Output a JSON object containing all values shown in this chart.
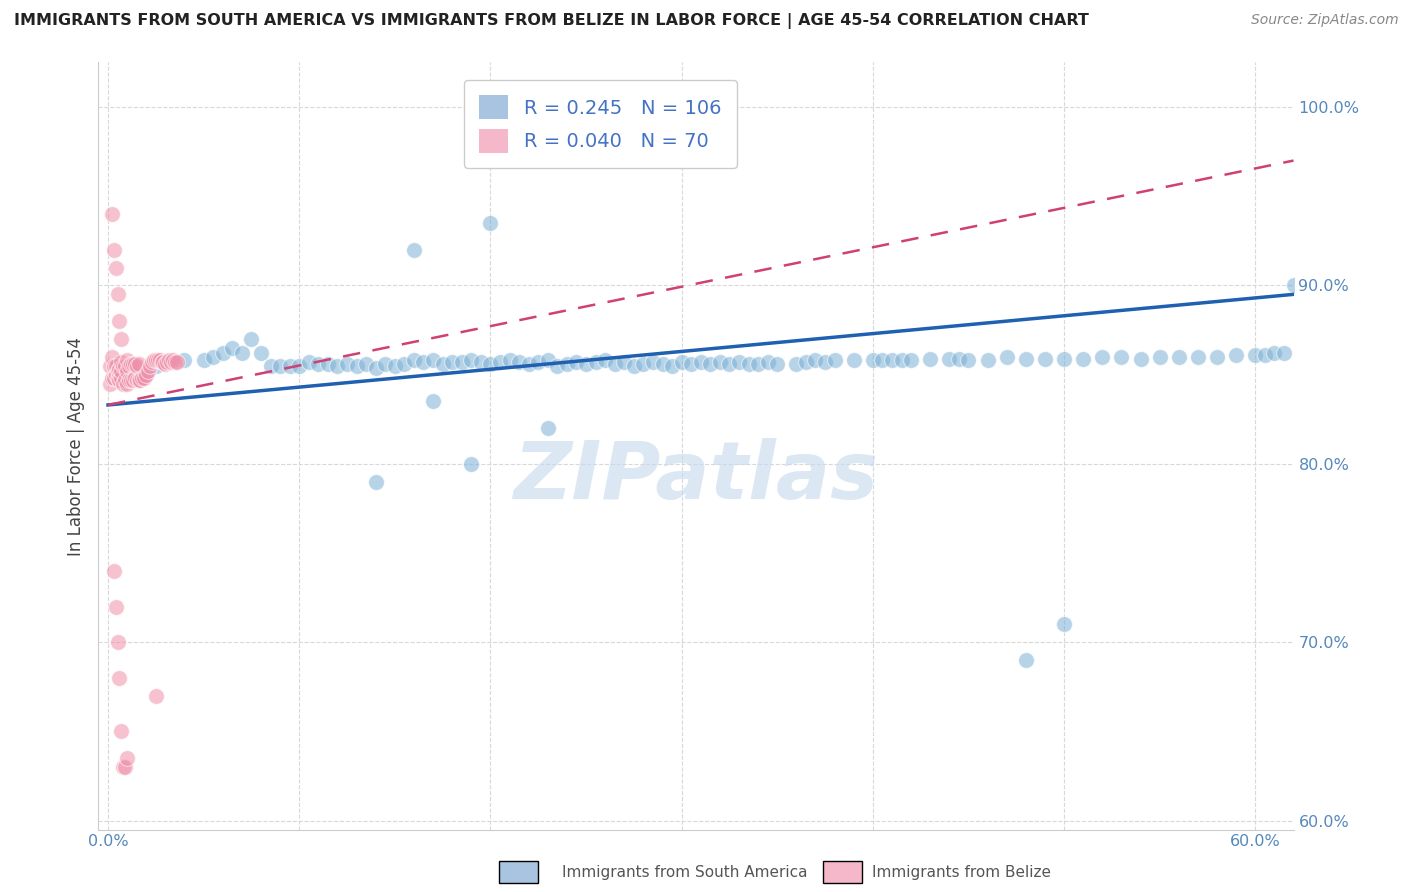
{
  "title": "IMMIGRANTS FROM SOUTH AMERICA VS IMMIGRANTS FROM BELIZE IN LABOR FORCE | AGE 45-54 CORRELATION CHART",
  "source": "Source: ZipAtlas.com",
  "ylabel": "In Labor Force | Age 45-54",
  "xlim": [
    -0.005,
    0.62
  ],
  "ylim": [
    0.595,
    1.025
  ],
  "xtick_positions": [
    0.0,
    0.1,
    0.2,
    0.3,
    0.4,
    0.5,
    0.6
  ],
  "xticklabels": [
    "0.0%",
    "",
    "",
    "",
    "",
    "",
    "60.0%"
  ],
  "ytick_positions": [
    0.6,
    0.7,
    0.8,
    0.9,
    1.0
  ],
  "yticklabels": [
    "60.0%",
    "70.0%",
    "80.0%",
    "90.0%",
    "100.0%"
  ],
  "legend_entries": [
    {
      "label": "Immigrants from South America",
      "color": "#a8c4e0",
      "R": 0.245,
      "N": 106
    },
    {
      "label": "Immigrants from Belize",
      "color": "#f4b8ca",
      "R": 0.04,
      "N": 70
    }
  ],
  "blue_scatter_color": "#7aafd4",
  "pink_scatter_color": "#f090aa",
  "trend_blue_color": "#2060b0",
  "trend_pink_color": "#d04070",
  "watermark_text": "ZIPatlas",
  "watermark_color": "#c5d8ee",
  "background_color": "#ffffff",
  "grid_color": "#d8d8d8",
  "tick_color": "#5588bb",
  "title_color": "#222222",
  "ylabel_color": "#444444",
  "source_color": "#888888",
  "sa_x": [
    0.02,
    0.025,
    0.04,
    0.05,
    0.055,
    0.06,
    0.065,
    0.07,
    0.075,
    0.08,
    0.085,
    0.09,
    0.095,
    0.1,
    0.105,
    0.11,
    0.115,
    0.12,
    0.125,
    0.13,
    0.135,
    0.14,
    0.145,
    0.15,
    0.155,
    0.16,
    0.165,
    0.17,
    0.175,
    0.18,
    0.185,
    0.19,
    0.195,
    0.2,
    0.205,
    0.21,
    0.215,
    0.22,
    0.225,
    0.23,
    0.235,
    0.24,
    0.245,
    0.25,
    0.255,
    0.26,
    0.265,
    0.27,
    0.275,
    0.28,
    0.285,
    0.29,
    0.295,
    0.3,
    0.305,
    0.31,
    0.315,
    0.32,
    0.325,
    0.33,
    0.335,
    0.34,
    0.345,
    0.35,
    0.36,
    0.365,
    0.37,
    0.375,
    0.38,
    0.39,
    0.4,
    0.405,
    0.41,
    0.415,
    0.42,
    0.43,
    0.44,
    0.445,
    0.45,
    0.46,
    0.47,
    0.48,
    0.49,
    0.5,
    0.51,
    0.52,
    0.53,
    0.54,
    0.55,
    0.56,
    0.57,
    0.58,
    0.59,
    0.6,
    0.605,
    0.61,
    0.615,
    0.62,
    0.5,
    0.48,
    0.23,
    0.19,
    0.17,
    0.14,
    0.16,
    0.2
  ],
  "sa_y": [
    0.85,
    0.855,
    0.858,
    0.858,
    0.86,
    0.862,
    0.865,
    0.862,
    0.87,
    0.862,
    0.855,
    0.855,
    0.855,
    0.855,
    0.857,
    0.856,
    0.856,
    0.855,
    0.856,
    0.855,
    0.856,
    0.854,
    0.856,
    0.855,
    0.856,
    0.858,
    0.857,
    0.858,
    0.856,
    0.857,
    0.857,
    0.858,
    0.857,
    0.856,
    0.857,
    0.858,
    0.857,
    0.856,
    0.857,
    0.858,
    0.855,
    0.856,
    0.857,
    0.856,
    0.857,
    0.858,
    0.856,
    0.857,
    0.855,
    0.856,
    0.857,
    0.856,
    0.855,
    0.857,
    0.856,
    0.857,
    0.856,
    0.857,
    0.856,
    0.857,
    0.856,
    0.856,
    0.857,
    0.856,
    0.856,
    0.857,
    0.858,
    0.857,
    0.858,
    0.858,
    0.858,
    0.858,
    0.858,
    0.858,
    0.858,
    0.859,
    0.859,
    0.859,
    0.858,
    0.858,
    0.86,
    0.859,
    0.859,
    0.859,
    0.859,
    0.86,
    0.86,
    0.859,
    0.86,
    0.86,
    0.86,
    0.86,
    0.861,
    0.861,
    0.861,
    0.862,
    0.862,
    0.9,
    0.71,
    0.69,
    0.82,
    0.8,
    0.835,
    0.79,
    0.92,
    0.935
  ],
  "belize_x": [
    0.001,
    0.001,
    0.002,
    0.002,
    0.003,
    0.003,
    0.004,
    0.004,
    0.005,
    0.005,
    0.006,
    0.006,
    0.006,
    0.007,
    0.007,
    0.007,
    0.008,
    0.008,
    0.009,
    0.009,
    0.01,
    0.01,
    0.01,
    0.011,
    0.011,
    0.012,
    0.012,
    0.013,
    0.013,
    0.014,
    0.014,
    0.015,
    0.015,
    0.016,
    0.016,
    0.017,
    0.018,
    0.019,
    0.02,
    0.021,
    0.022,
    0.023,
    0.024,
    0.025,
    0.026,
    0.027,
    0.028,
    0.029,
    0.03,
    0.031,
    0.032,
    0.033,
    0.034,
    0.035,
    0.036,
    0.002,
    0.003,
    0.004,
    0.005,
    0.006,
    0.007,
    0.003,
    0.004,
    0.005,
    0.006,
    0.007,
    0.008,
    0.009,
    0.01,
    0.025
  ],
  "belize_y": [
    0.855,
    0.845,
    0.86,
    0.848,
    0.855,
    0.848,
    0.855,
    0.85,
    0.848,
    0.852,
    0.85,
    0.847,
    0.853,
    0.848,
    0.852,
    0.857,
    0.845,
    0.855,
    0.847,
    0.855,
    0.845,
    0.852,
    0.858,
    0.847,
    0.855,
    0.847,
    0.856,
    0.847,
    0.856,
    0.848,
    0.856,
    0.847,
    0.855,
    0.847,
    0.856,
    0.847,
    0.848,
    0.848,
    0.85,
    0.852,
    0.855,
    0.857,
    0.858,
    0.858,
    0.858,
    0.858,
    0.857,
    0.857,
    0.856,
    0.857,
    0.858,
    0.857,
    0.858,
    0.857,
    0.857,
    0.94,
    0.92,
    0.91,
    0.895,
    0.88,
    0.87,
    0.74,
    0.72,
    0.7,
    0.68,
    0.65,
    0.63,
    0.63,
    0.635,
    0.67
  ],
  "sa_trend_x": [
    0.0,
    0.62
  ],
  "sa_trend_y": [
    0.833,
    0.895
  ],
  "belize_trend_x": [
    0.0,
    0.62
  ],
  "belize_trend_y": [
    0.833,
    0.97
  ]
}
